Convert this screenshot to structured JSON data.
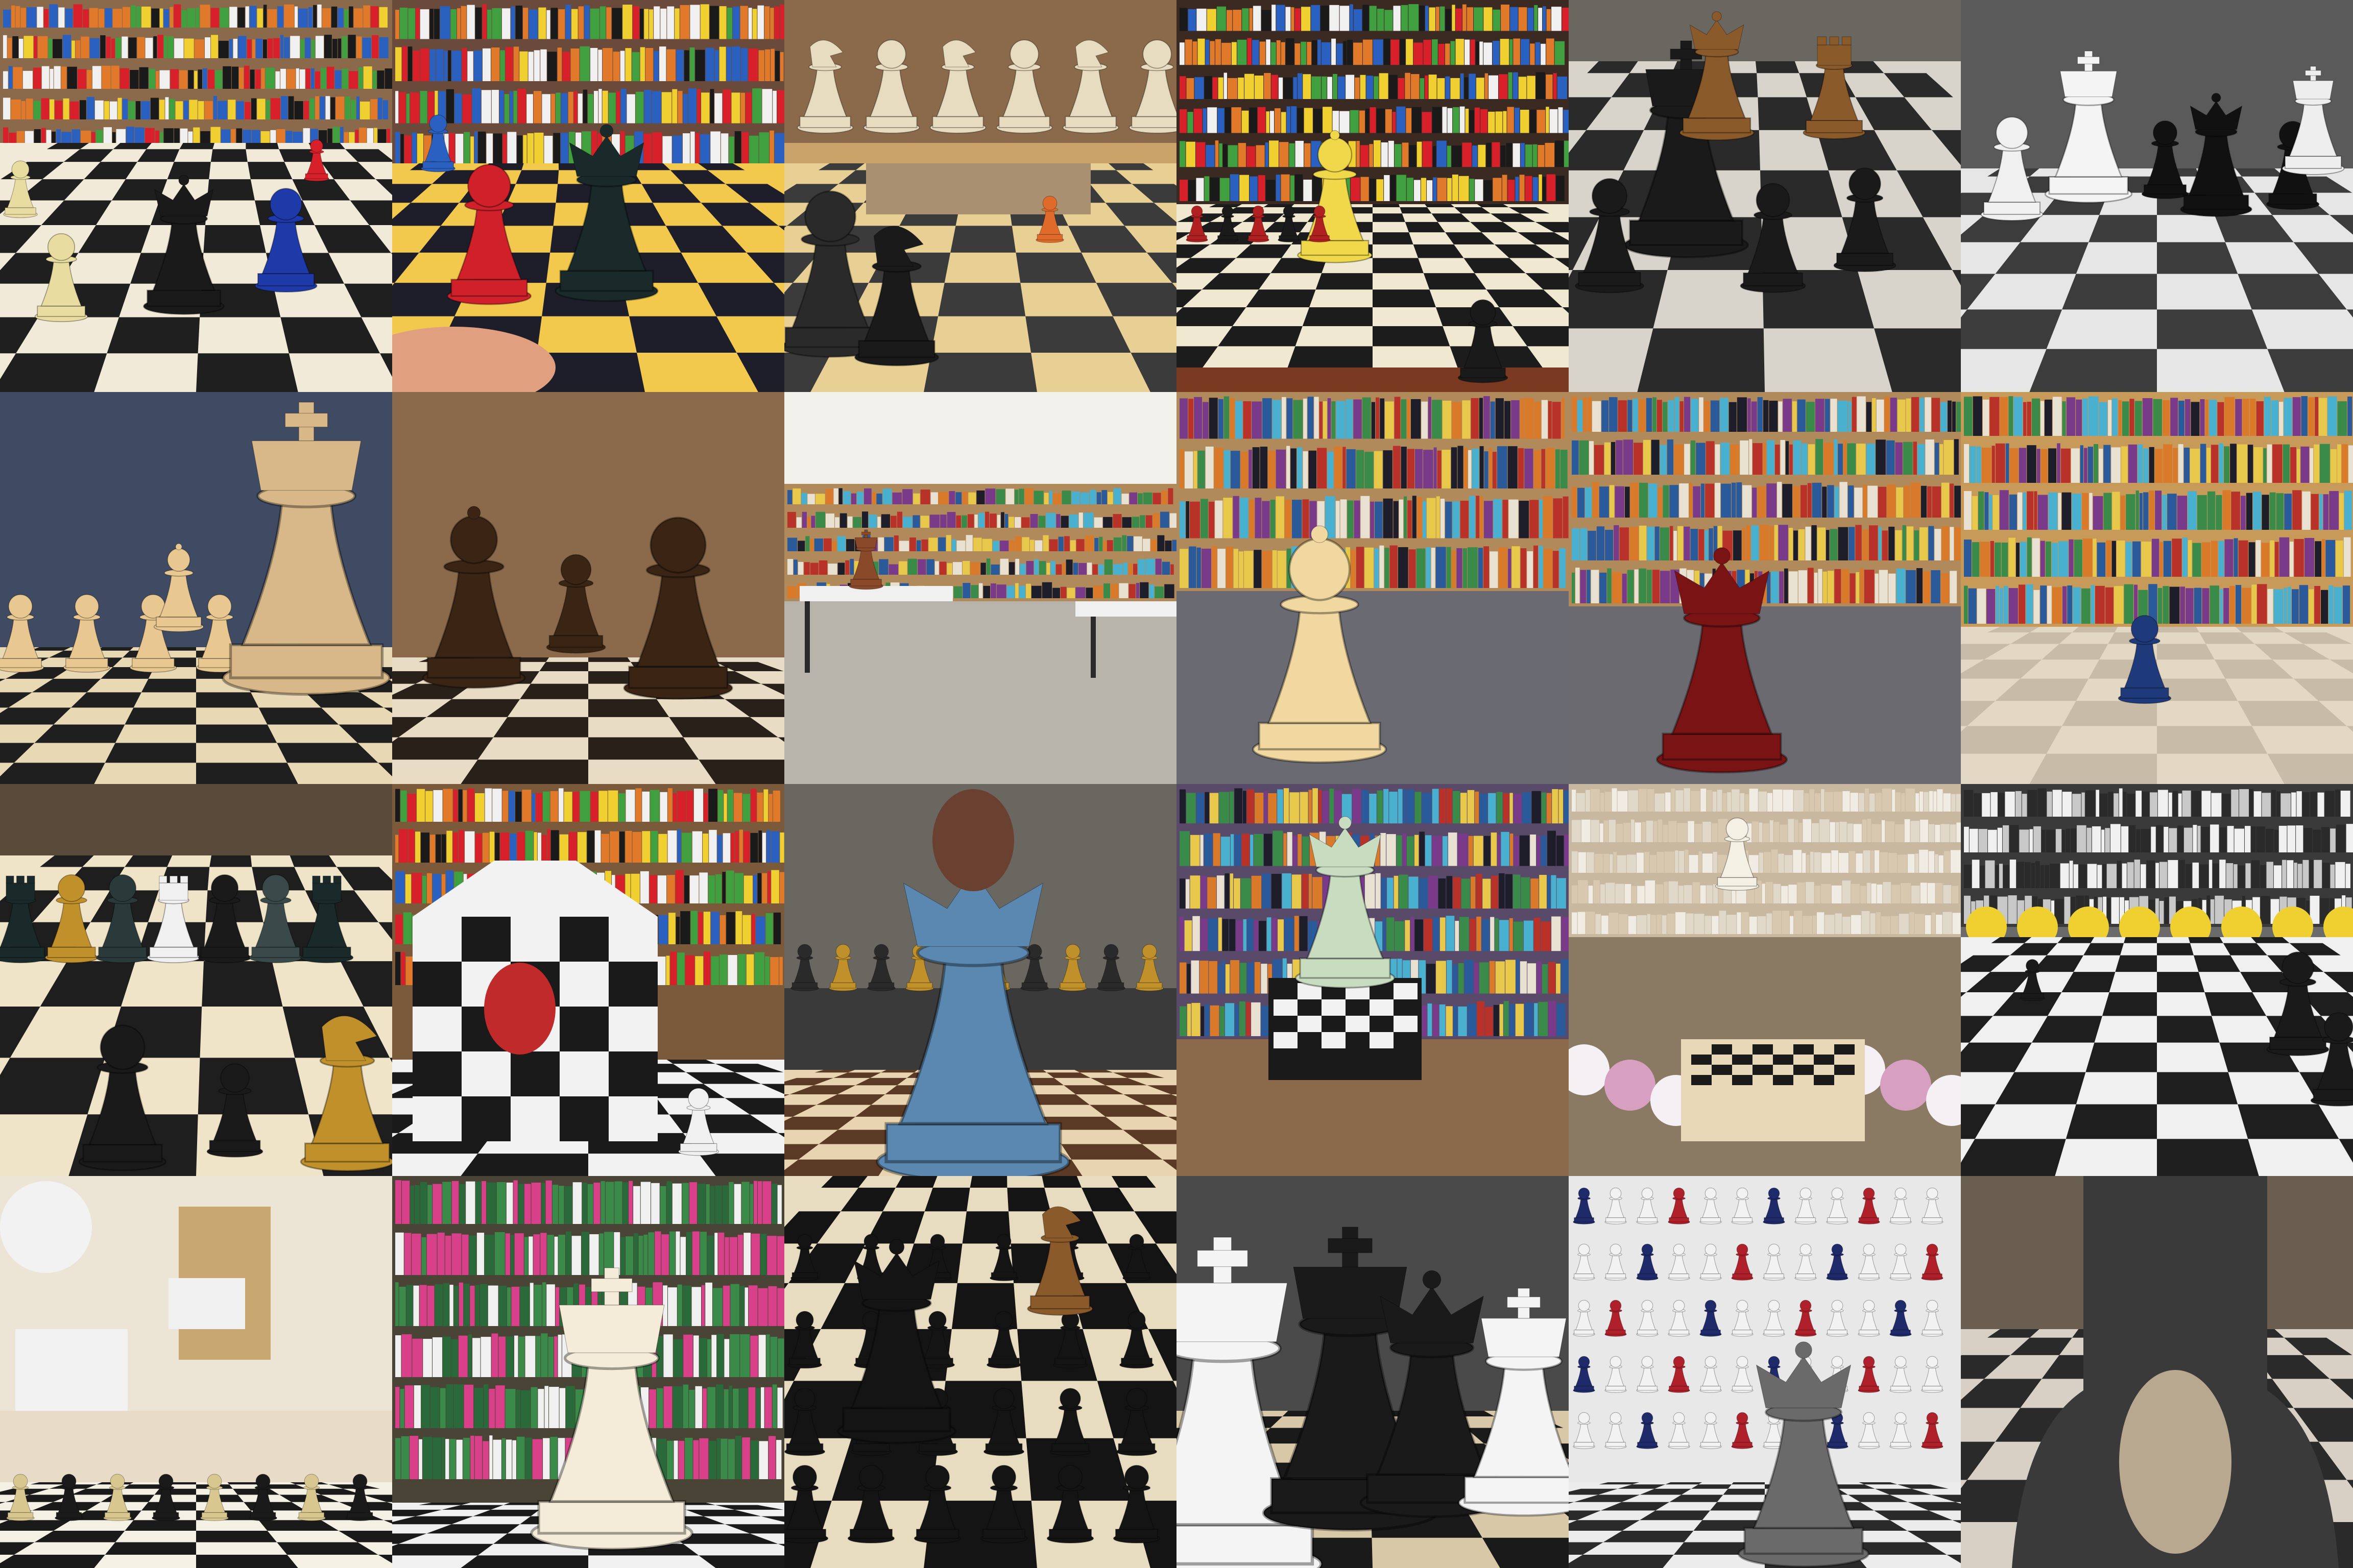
{
  "collage": {
    "columns": 6,
    "rows": 4,
    "tiles": [
      {
        "scene": "toy-store-chessboard",
        "colors": {
          "bg": "#d9c7a6",
          "board_a": "#f2ead8",
          "board_b": "#1f1f1f",
          "accent": "#1e3aa8"
        }
      },
      {
        "scene": "colorful-toy-store-pieces",
        "colors": {
          "bg": "#e0b64a",
          "board_a": "#f2c94c",
          "board_b": "#1e1e2a",
          "accent": "#d0202a"
        }
      },
      {
        "scene": "hall-large-pieces",
        "colors": {
          "bg": "#c9a36a",
          "board_a": "#e8cf93",
          "board_b": "#3b3b3b",
          "accent": "#e06a2a"
        }
      },
      {
        "scene": "game-store-yellow-bishop",
        "colors": {
          "bg": "#3a2a22",
          "board_a": "#f0e8d0",
          "board_b": "#1c1c1c",
          "accent": "#f0d84a"
        }
      },
      {
        "scene": "blurred-board-dark-pieces",
        "colors": {
          "bg": "#6a6660",
          "board_a": "#d8d4cc",
          "board_b": "#2a2a2a",
          "accent": "#8a5a2a"
        }
      },
      {
        "scene": "monochrome-pieces",
        "colors": {
          "bg": "#9a9a9a",
          "board_a": "#e6e6e6",
          "board_b": "#3c3c3c",
          "accent": "#111111"
        }
      },
      {
        "scene": "wooden-pieces-blue-backdrop",
        "colors": {
          "bg": "#3f4b63",
          "board_a": "#e9d8b4",
          "board_b": "#1f1f1f",
          "accent": "#e8c890"
        }
      },
      {
        "scene": "dark-wood-pawns",
        "colors": {
          "bg": "#8a6a4a",
          "board_a": "#e8dcc4",
          "board_b": "#2a201a",
          "accent": "#3a2414"
        }
      },
      {
        "scene": "library-reading-room",
        "colors": {
          "bg": "#d8d4cc",
          "board_a": "#b8b4ac",
          "board_b": "#7a746c",
          "accent": "#8a4a2a"
        }
      },
      {
        "scene": "library-cream-bishop",
        "colors": {
          "bg": "#5c4630",
          "board_a": "#6a6a72",
          "board_b": "#5a5a62",
          "accent": "#f0d8a0"
        }
      },
      {
        "scene": "library-red-king",
        "colors": {
          "bg": "#4a3a2a",
          "board_a": "#6a6a70",
          "board_b": "#5a5a62",
          "accent": "#7a1414"
        }
      },
      {
        "scene": "library-blue-pawn",
        "colors": {
          "bg": "#a88450",
          "board_a": "#e2d8c4",
          "board_b": "#c8bca8",
          "accent": "#1e3a7a"
        }
      },
      {
        "scene": "board-mixed-pieces",
        "colors": {
          "bg": "#5a4a3a",
          "board_a": "#f0e4c8",
          "board_b": "#1e1e1e",
          "accent": "#c0902a"
        }
      },
      {
        "scene": "checkered-tower-sculpture",
        "colors": {
          "bg": "#7a5a3a",
          "board_a": "#f2f2f2",
          "board_b": "#1a1a1a",
          "accent": "#c02a2a"
        }
      },
      {
        "scene": "carved-horse-queen",
        "colors": {
          "bg": "#3a3a3a",
          "board_a": "#e8d4b0",
          "board_b": "#5a3a24",
          "accent": "#5a88b0"
        }
      },
      {
        "scene": "toy-store-pedestal-queen",
        "colors": {
          "bg": "#6a5a8a",
          "board_a": "#f2f2f2",
          "board_b": "#1a1a1a",
          "accent": "#c8dcc0"
        }
      },
      {
        "scene": "flower-shop-chess-table",
        "colors": {
          "bg": "#c8b8a0",
          "board_a": "#f0ece4",
          "board_b": "#1a1a1a",
          "accent": "#d8a0c0"
        }
      },
      {
        "scene": "flower-shop-floor-board",
        "colors": {
          "bg": "#6a6a6a",
          "board_a": "#f0f0f0",
          "board_b": "#1e1e1e",
          "accent": "#f0d030"
        }
      },
      {
        "scene": "home-lamp-flowers",
        "colors": {
          "bg": "#e8dcc8",
          "board_a": "#f4f0e4",
          "board_b": "#1a1a1a",
          "accent": "#f2f2f2"
        }
      },
      {
        "scene": "plant-shop-white-king",
        "colors": {
          "bg": "#4a4436",
          "board_a": "#f0f0f0",
          "board_b": "#1a1a1a",
          "accent": "#f4ecd8"
        }
      },
      {
        "scene": "dark-board-many-pawns",
        "colors": {
          "bg": "#2a2622",
          "board_a": "#e8dcc0",
          "board_b": "#141414",
          "accent": "#8a5a2a"
        }
      },
      {
        "scene": "black-white-kings-closeup",
        "colors": {
          "bg": "#4a4a4a",
          "board_a": "#d8c8a8",
          "board_b": "#1a1a1a",
          "accent": "#f4f4f4"
        }
      },
      {
        "scene": "shelf-display-grey-king",
        "colors": {
          "bg": "#5a5a5a",
          "board_a": "#ececec",
          "board_b": "#2a2a2a",
          "accent": "#b0202a"
        }
      },
      {
        "scene": "metal-piece-closeup",
        "colors": {
          "bg": "#6a5e50",
          "board_a": "#d8d0c4",
          "board_b": "#2a2a2a",
          "accent": "#3a3a3a"
        }
      }
    ]
  }
}
